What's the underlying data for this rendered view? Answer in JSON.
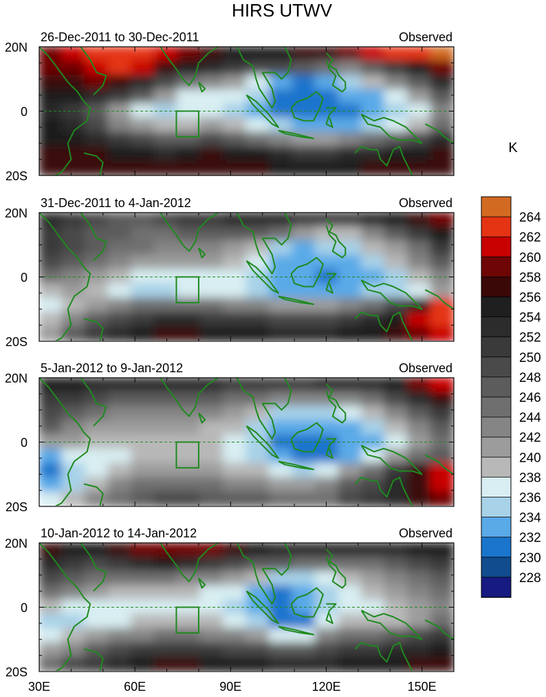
{
  "title": "HIRS UTWV",
  "unit_label": "K",
  "colors": {
    "coast": "#1f8a1f",
    "box": "#1f8a1f",
    "equator_line": "#1f8a1f"
  },
  "chart_data": {
    "type": "heatmap",
    "title": "HIRS UTWV",
    "xlim": [
      30,
      160
    ],
    "ylim": [
      -20,
      20
    ],
    "x_ticks": [
      {
        "value": 30,
        "label": "30E"
      },
      {
        "value": 60,
        "label": "60E"
      },
      {
        "value": 90,
        "label": "90E"
      },
      {
        "value": 120,
        "label": "120E"
      },
      {
        "value": 150,
        "label": "150E"
      }
    ],
    "y_ticks": [
      {
        "value": 20,
        "label": "20N"
      },
      {
        "value": 0,
        "label": "0"
      },
      {
        "value": -20,
        "label": "20S"
      }
    ],
    "colorbar": {
      "unit": "K",
      "levels": [
        "228",
        "230",
        "232",
        "234",
        "236",
        "238",
        "240",
        "242",
        "244",
        "246",
        "248",
        "250",
        "252",
        "254",
        "256",
        "258",
        "260",
        "262",
        "264"
      ],
      "level_values": [
        228,
        230,
        232,
        234,
        236,
        238,
        240,
        242,
        244,
        246,
        248,
        250,
        252,
        254,
        256,
        258,
        260,
        262,
        264
      ],
      "colors": [
        "#171a80",
        "#114c8f",
        "#1a75cc",
        "#5aaae8",
        "#a8d2e8",
        "#d8eef2",
        "#b8b8b8",
        "#9c9c9c",
        "#858585",
        "#6f6f6f",
        "#5c5c5c",
        "#4a4a4a",
        "#3a3a3a",
        "#2c2c2c",
        "#1f1f1f",
        "#3b0808",
        "#6e0606",
        "#c80000",
        "#e43414",
        "#d26a22"
      ]
    },
    "box_region": {
      "lon": [
        73,
        80
      ],
      "lat": [
        -8,
        0
      ]
    },
    "panels": [
      {
        "left_label": "26-Dec-2011 to 30-Dec-2011",
        "right_label": "Observed",
        "field": [
          [
            259,
            260,
            262,
            263,
            262,
            260,
            258,
            256,
            255,
            254,
            255,
            256,
            257,
            259,
            261,
            262,
            263,
            264
          ],
          [
            258,
            259,
            261,
            262,
            260,
            257,
            254,
            252,
            250,
            249,
            248,
            246,
            244,
            243,
            246,
            250,
            255,
            258
          ],
          [
            256,
            257,
            258,
            257,
            253,
            248,
            245,
            242,
            240,
            236,
            233,
            231,
            232,
            234,
            238,
            242,
            247,
            252
          ],
          [
            254,
            254,
            253,
            250,
            246,
            241,
            237,
            236,
            236,
            234,
            231,
            230,
            231,
            232,
            233,
            236,
            240,
            246
          ],
          [
            252,
            250,
            246,
            241,
            237,
            235,
            236,
            236,
            235,
            233,
            231,
            230,
            230,
            231,
            232,
            234,
            237,
            243
          ],
          [
            254,
            252,
            248,
            243,
            240,
            238,
            238,
            240,
            238,
            236,
            234,
            232,
            232,
            233,
            234,
            236,
            239,
            244
          ],
          [
            255,
            254,
            252,
            250,
            248,
            246,
            246,
            248,
            246,
            244,
            242,
            240,
            240,
            242,
            244,
            246,
            249,
            252
          ],
          [
            256,
            256,
            256,
            255,
            254,
            253,
            254,
            256,
            255,
            254,
            252,
            250,
            250,
            252,
            253,
            254,
            255,
            256
          ],
          [
            257,
            257,
            257,
            257,
            256,
            256,
            257,
            257,
            257,
            256,
            255,
            254,
            254,
            255,
            256,
            256,
            257,
            257
          ]
        ]
      },
      {
        "left_label": "31-Dec-2011 to 4-Jan-2012",
        "right_label": "Observed",
        "field": [
          [
            252,
            250,
            248,
            247,
            247,
            248,
            250,
            251,
            252,
            252,
            252,
            251,
            250,
            251,
            253,
            255,
            257,
            259
          ],
          [
            251,
            249,
            247,
            246,
            245,
            245,
            246,
            246,
            246,
            246,
            244,
            240,
            238,
            239,
            242,
            246,
            250,
            254
          ],
          [
            250,
            248,
            246,
            245,
            244,
            243,
            243,
            242,
            241,
            238,
            235,
            233,
            234,
            235,
            238,
            241,
            245,
            250
          ],
          [
            248,
            246,
            244,
            242,
            241,
            241,
            241,
            240,
            239,
            236,
            233,
            232,
            232,
            233,
            235,
            238,
            242,
            246
          ],
          [
            245,
            243,
            240,
            238,
            237,
            237,
            237,
            237,
            237,
            234,
            232,
            232,
            231,
            232,
            233,
            235,
            238,
            242
          ],
          [
            238,
            240,
            238,
            236,
            235,
            235,
            236,
            236,
            236,
            234,
            233,
            232,
            232,
            233,
            234,
            234,
            236,
            240
          ],
          [
            236,
            238,
            241,
            243,
            244,
            245,
            245,
            244,
            243,
            242,
            241,
            240,
            240,
            242,
            244,
            248,
            255,
            262
          ],
          [
            238,
            242,
            246,
            249,
            251,
            252,
            252,
            251,
            250,
            250,
            249,
            248,
            248,
            250,
            252,
            255,
            260,
            263
          ],
          [
            240,
            246,
            250,
            253,
            255,
            256,
            256,
            255,
            254,
            254,
            253,
            252,
            252,
            254,
            255,
            257,
            259,
            260
          ]
        ]
      },
      {
        "left_label": "5-Jan-2012 to 9-Jan-2012",
        "right_label": "Observed",
        "field": [
          [
            254,
            254,
            253,
            253,
            253,
            253,
            253,
            252,
            251,
            250,
            250,
            251,
            252,
            252,
            253,
            255,
            258,
            261
          ],
          [
            251,
            250,
            248,
            247,
            247,
            247,
            247,
            246,
            245,
            244,
            243,
            242,
            242,
            243,
            245,
            248,
            252,
            256
          ],
          [
            248,
            246,
            244,
            243,
            243,
            243,
            243,
            242,
            241,
            238,
            235,
            234,
            235,
            236,
            239,
            242,
            246,
            250
          ],
          [
            246,
            243,
            241,
            240,
            240,
            240,
            240,
            239,
            238,
            235,
            233,
            232,
            232,
            233,
            235,
            238,
            242,
            246
          ],
          [
            240,
            240,
            239,
            238,
            238,
            238,
            238,
            238,
            237,
            234,
            231,
            230,
            231,
            232,
            233,
            236,
            240,
            244
          ],
          [
            233,
            236,
            237,
            237,
            238,
            238,
            238,
            238,
            237,
            235,
            232,
            230,
            231,
            232,
            236,
            241,
            244,
            246
          ],
          [
            231,
            234,
            237,
            239,
            240,
            241,
            241,
            240,
            239,
            238,
            236,
            234,
            236,
            240,
            245,
            250,
            256,
            260
          ],
          [
            232,
            235,
            239,
            242,
            244,
            245,
            245,
            244,
            243,
            242,
            241,
            240,
            242,
            246,
            249,
            252,
            257,
            260
          ],
          [
            236,
            238,
            242,
            245,
            247,
            248,
            248,
            247,
            246,
            246,
            245,
            244,
            245,
            248,
            250,
            253,
            256,
            258
          ]
        ]
      },
      {
        "left_label": "10-Jan-2012 to 14-Jan-2012",
        "right_label": "Observed",
        "field": [
          [
            256,
            255,
            254,
            256,
            258,
            259,
            259,
            258,
            256,
            254,
            253,
            253,
            252,
            252,
            252,
            253,
            254,
            255
          ],
          [
            253,
            251,
            249,
            251,
            253,
            254,
            253,
            251,
            249,
            247,
            246,
            245,
            244,
            244,
            245,
            246,
            248,
            250
          ],
          [
            249,
            247,
            245,
            244,
            244,
            244,
            243,
            242,
            241,
            238,
            234,
            234,
            236,
            238,
            240,
            242,
            244,
            247
          ],
          [
            245,
            242,
            240,
            239,
            238,
            238,
            238,
            237,
            236,
            233,
            231,
            232,
            234,
            236,
            238,
            240,
            242,
            245
          ],
          [
            238,
            237,
            236,
            236,
            236,
            236,
            236,
            236,
            235,
            232,
            230,
            232,
            235,
            236,
            237,
            238,
            240,
            242
          ],
          [
            235,
            235,
            236,
            237,
            238,
            238,
            238,
            238,
            237,
            234,
            230,
            231,
            236,
            238,
            239,
            239,
            241,
            244
          ],
          [
            237,
            238,
            240,
            242,
            243,
            244,
            244,
            243,
            242,
            240,
            236,
            237,
            242,
            244,
            245,
            246,
            248,
            251
          ],
          [
            240,
            243,
            246,
            248,
            250,
            251,
            251,
            250,
            249,
            248,
            246,
            246,
            248,
            250,
            251,
            252,
            253,
            255
          ],
          [
            244,
            248,
            251,
            253,
            255,
            256,
            256,
            255,
            254,
            254,
            253,
            252,
            253,
            254,
            255,
            255,
            256,
            257
          ]
        ]
      }
    ]
  }
}
